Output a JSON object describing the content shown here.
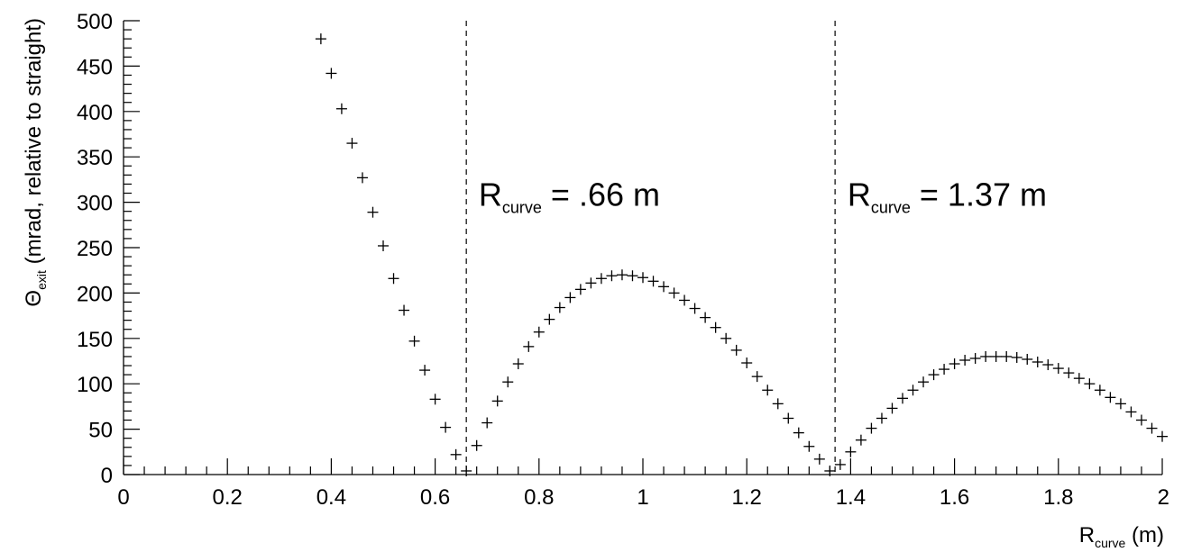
{
  "chart_data": {
    "type": "scatter",
    "marker": "plus",
    "xlim": [
      0,
      2
    ],
    "ylim": [
      0,
      500
    ],
    "grid": false,
    "x_ticks": [
      0,
      0.2,
      0.4,
      0.6,
      0.8,
      1,
      1.2,
      1.4,
      1.6,
      1.8,
      2
    ],
    "x_tick_labels": [
      "0",
      "0.2",
      "0.4",
      "0.6",
      "0.8",
      "1",
      "1.2",
      "1.4",
      "1.6",
      "1.8",
      "2"
    ],
    "y_ticks": [
      0,
      50,
      100,
      150,
      200,
      250,
      300,
      350,
      400,
      450,
      500
    ],
    "y_tick_labels": [
      "0",
      "50",
      "100",
      "150",
      "200",
      "250",
      "300",
      "350",
      "400",
      "450",
      "500"
    ],
    "xlabel": {
      "main": "R",
      "sub": "curve",
      "rest": " (m)"
    },
    "ylabel": {
      "main": "Θ",
      "sub": "exit",
      "rest": " (mrad, relative to straight)"
    },
    "vlines": [
      0.66,
      1.37
    ],
    "annotations": [
      {
        "main": "R",
        "sub": "curve",
        "rest": " = .66 m",
        "x": 0.67,
        "y": 300
      },
      {
        "main": "R",
        "sub": "curve",
        "rest": " = 1.37 m",
        "x": 1.38,
        "y": 300
      }
    ],
    "x": [
      0.38,
      0.4,
      0.42,
      0.44,
      0.46,
      0.48,
      0.5,
      0.52,
      0.54,
      0.56,
      0.58,
      0.6,
      0.62,
      0.64,
      0.66,
      0.68,
      0.7,
      0.72,
      0.74,
      0.76,
      0.78,
      0.8,
      0.82,
      0.84,
      0.86,
      0.88,
      0.9,
      0.92,
      0.94,
      0.96,
      0.98,
      1.0,
      1.02,
      1.04,
      1.06,
      1.08,
      1.1,
      1.12,
      1.14,
      1.16,
      1.18,
      1.2,
      1.22,
      1.24,
      1.26,
      1.28,
      1.3,
      1.32,
      1.34,
      1.36,
      1.38,
      1.4,
      1.42,
      1.44,
      1.46,
      1.48,
      1.5,
      1.52,
      1.54,
      1.56,
      1.58,
      1.6,
      1.62,
      1.64,
      1.66,
      1.68,
      1.7,
      1.72,
      1.74,
      1.76,
      1.78,
      1.8,
      1.82,
      1.84,
      1.86,
      1.88,
      1.9,
      1.92,
      1.94,
      1.96,
      1.98,
      2.0
    ],
    "y": [
      480,
      442,
      403,
      365,
      327,
      289,
      252,
      216,
      181,
      147,
      115,
      83,
      52,
      22,
      4,
      32,
      57,
      81,
      102,
      122,
      141,
      157,
      171,
      184,
      195,
      204,
      211,
      216,
      219,
      220,
      219,
      217,
      213,
      207,
      200,
      192,
      183,
      173,
      162,
      150,
      137,
      123,
      108,
      93,
      78,
      62,
      46,
      31,
      17,
      4,
      11,
      25,
      38,
      51,
      62,
      73,
      84,
      93,
      102,
      110,
      116,
      122,
      126,
      128,
      130,
      130,
      130,
      129,
      127,
      124,
      121,
      117,
      112,
      106,
      100,
      93,
      85,
      78,
      69,
      60,
      51,
      42
    ]
  }
}
